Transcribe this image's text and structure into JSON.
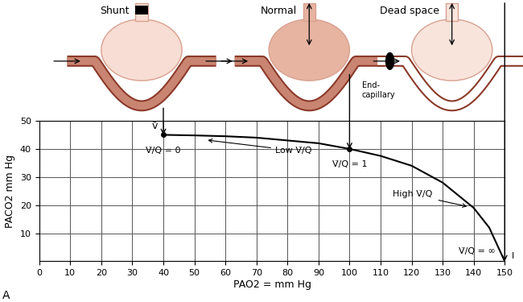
{
  "chart_data": {
    "type": "line",
    "x": [
      40,
      50,
      60,
      70,
      80,
      90,
      100,
      110,
      120,
      130,
      140,
      145,
      150
    ],
    "values": [
      45,
      44.8,
      44.5,
      44,
      43,
      42,
      40,
      37.5,
      34,
      28,
      19,
      12,
      0
    ],
    "color": "#000000",
    "xlim": [
      0,
      150
    ],
    "ylim": [
      0,
      50
    ],
    "xticks": [
      0,
      10,
      20,
      30,
      40,
      50,
      60,
      70,
      80,
      90,
      100,
      110,
      120,
      130,
      140,
      150
    ],
    "yticks": [
      10,
      20,
      30,
      40,
      50
    ],
    "grid": true,
    "xlabel": "PAO2 = mm Hg",
    "ylabel": "PACO2 mm Hg",
    "points": {
      "x": [
        40,
        100
      ],
      "y": [
        45,
        40
      ]
    },
    "annotations": {
      "mixed_venous": "v̄",
      "zero": "V̇/Q̇ = 0",
      "low": "Low V̇/Q̇",
      "one": "V̇/Q̇ = 1",
      "high": "High V̇/Q̇",
      "infinite": "V̇/Q̇ = ∞",
      "inspired": "I"
    },
    "diagrams": [
      "Shunt",
      "Normal",
      "Dead space"
    ],
    "end_capillary": "End-\ncapillary",
    "panel": "A"
  }
}
